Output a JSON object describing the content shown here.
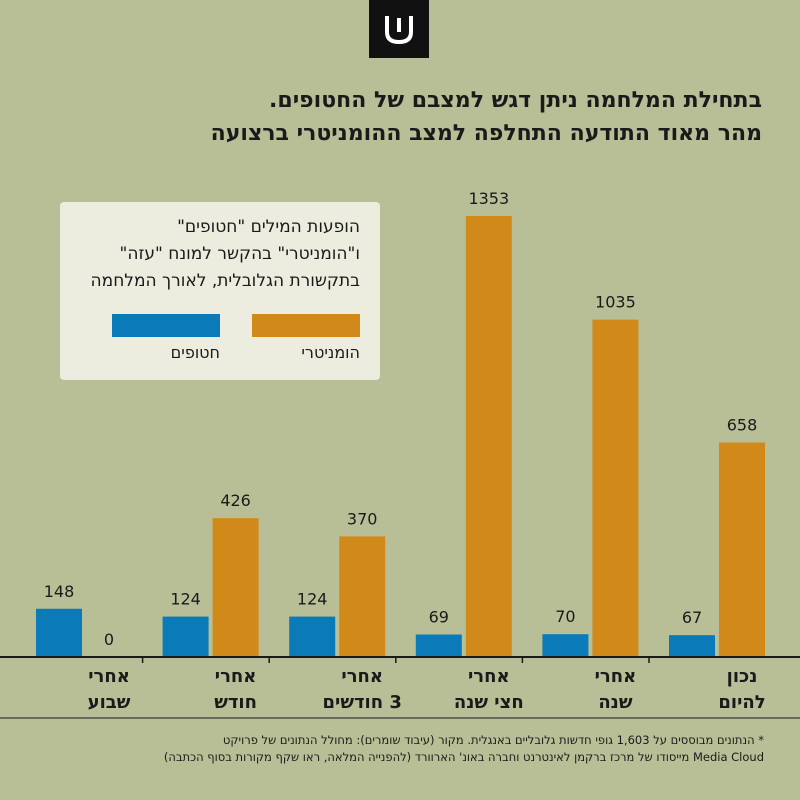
{
  "title_lines": [
    "בתחילת המלחמה ניתן דגש למצבם של החטופים.",
    "מהר מאוד התודעה התחלפה למצב ההומניטרי ברצועה"
  ],
  "legend": {
    "title_lines": [
      "הופעות המילים \"חטופים\"",
      "ו\"הומניטרי\" בהקשר למונח \"עזה\"",
      "בתקשורת הגלובלית, לאורך המלחמה"
    ],
    "hostages_label": "חטופים",
    "humanitarian_label": "הומניטרי"
  },
  "colors": {
    "background": "#b8bf97",
    "hostages": "#0a7ab8",
    "humanitarian": "#d18a19"
  },
  "logo_icon": "shin-letter-logo",
  "chart_data": {
    "type": "bar",
    "categories": [
      [
        "אחרי",
        "שבוע"
      ],
      [
        "אחרי",
        "חודש"
      ],
      [
        "אחרי",
        "3 חודשים"
      ],
      [
        "אחרי",
        "חצי שנה"
      ],
      [
        "אחרי",
        "שנה"
      ],
      [
        "נכון",
        "להיום"
      ]
    ],
    "series": [
      {
        "name": "חטופים",
        "values": [
          148,
          124,
          124,
          69,
          70,
          67
        ]
      },
      {
        "name": "הומניטרי",
        "values": [
          0,
          426,
          370,
          1353,
          1035,
          658
        ]
      }
    ],
    "ylim": [
      0,
      1450
    ],
    "grid": false,
    "legend_position": "top-left"
  },
  "footnote_lines": [
    "* הנתונים מבוססים על 1,603 גופי חדשות גלובליים באנגלית. מקור (עיבוד שומרים): מחולל הנתונים של פרויקט",
    "Media Cloud מייסודו של מרכז ברקמן לאינטרנט וחברה באונ' הארוורד (להפנייה המלאה, ראו שקף מקורות בסוף הכתבה)"
  ]
}
